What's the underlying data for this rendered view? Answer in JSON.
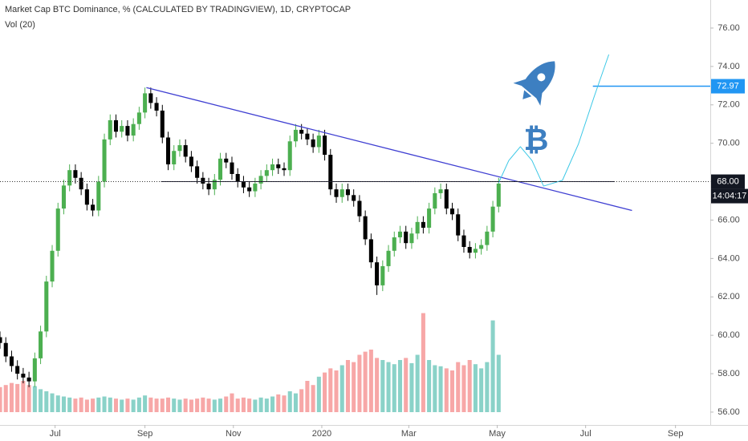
{
  "chart_data": {
    "type": "candlestick",
    "title": "Market Cap BTC Dominance, % (CALCULATED BY TRADINGVIEW), 1D, CRYPTOCAP",
    "subtitle": "Vol (20)",
    "x": [
      0,
      4,
      8,
      12,
      16,
      20,
      24,
      28,
      32,
      36,
      40,
      44,
      48,
      52,
      56,
      60,
      64,
      68,
      72,
      76,
      80,
      84,
      88,
      92,
      96,
      100,
      104,
      108,
      112,
      116,
      120,
      124,
      128,
      132,
      136,
      140,
      144,
      148,
      152,
      156,
      160,
      164,
      168,
      172,
      176,
      180,
      184,
      188,
      192,
      196,
      200,
      204,
      208,
      212,
      216,
      220,
      224,
      228,
      232,
      236,
      240,
      244,
      248,
      252,
      256,
      260,
      264,
      268,
      272,
      276,
      280,
      284,
      288,
      292,
      296,
      300,
      304,
      308,
      312,
      316,
      320,
      324,
      328,
      332,
      336,
      340,
      344
    ],
    "open": [
      59.9,
      59.6,
      58.9,
      58.4,
      58.0,
      57.8,
      57.6,
      58.8,
      60.2,
      62.8,
      64.4,
      66.6,
      67.8,
      68.6,
      68.2,
      67.6,
      66.8,
      66.5,
      68.0,
      70.2,
      71.2,
      70.6,
      70.9,
      70.4,
      71.0,
      71.6,
      72.6,
      72.1,
      71.7,
      70.3,
      68.9,
      69.6,
      69.9,
      69.3,
      68.8,
      68.2,
      67.9,
      67.6,
      68.1,
      69.2,
      69.0,
      68.4,
      68.0,
      67.7,
      67.5,
      67.9,
      68.3,
      68.6,
      68.9,
      68.7,
      68.6,
      70.1,
      70.7,
      70.5,
      70.2,
      69.8,
      70.4,
      69.4,
      67.6,
      67.2,
      67.6,
      67.3,
      67.0,
      66.2,
      65.0,
      63.8,
      62.6,
      63.6,
      64.4,
      65.1,
      65.4,
      64.8,
      65.3,
      65.9,
      65.6,
      66.6,
      67.4,
      67.6,
      66.6,
      66.3,
      65.2,
      64.6,
      64.3,
      64.5,
      64.7,
      65.4,
      66.7
    ],
    "high": [
      60.2,
      59.9,
      59.2,
      58.7,
      58.3,
      58.1,
      59.1,
      60.5,
      63.1,
      64.7,
      66.9,
      68.1,
      68.9,
      68.9,
      68.5,
      67.9,
      67.1,
      68.3,
      70.5,
      71.5,
      71.5,
      71.2,
      71.2,
      71.3,
      71.9,
      72.9,
      72.9,
      72.4,
      72.0,
      70.6,
      69.9,
      70.2,
      70.2,
      69.6,
      69.1,
      68.5,
      68.2,
      68.4,
      69.5,
      69.5,
      69.3,
      68.7,
      68.3,
      68.0,
      68.2,
      68.6,
      68.9,
      69.2,
      69.2,
      69.0,
      70.4,
      71.0,
      71.0,
      70.8,
      70.5,
      70.7,
      70.7,
      69.7,
      67.9,
      67.9,
      67.9,
      67.6,
      67.3,
      66.5,
      65.3,
      64.1,
      63.9,
      64.7,
      65.4,
      65.7,
      65.7,
      65.6,
      66.2,
      66.2,
      66.9,
      67.7,
      67.9,
      67.9,
      66.9,
      66.6,
      65.5,
      64.9,
      64.8,
      65.0,
      65.7,
      67.0,
      68.2
    ],
    "low": [
      59.3,
      58.6,
      58.1,
      57.7,
      57.5,
      57.3,
      57.3,
      58.5,
      59.9,
      62.5,
      64.1,
      66.3,
      67.5,
      67.9,
      67.3,
      66.5,
      66.2,
      66.2,
      67.7,
      69.9,
      70.3,
      70.3,
      70.1,
      70.1,
      70.7,
      71.3,
      71.8,
      71.4,
      70.0,
      68.6,
      68.6,
      69.3,
      69.0,
      68.5,
      67.9,
      67.6,
      67.3,
      67.3,
      67.8,
      68.7,
      68.1,
      67.7,
      67.4,
      67.2,
      67.2,
      67.6,
      68.0,
      68.3,
      68.4,
      68.3,
      68.3,
      69.8,
      70.2,
      69.9,
      69.5,
      69.5,
      69.1,
      67.3,
      66.9,
      66.9,
      67.0,
      66.7,
      65.9,
      64.7,
      63.5,
      62.1,
      62.3,
      63.3,
      64.1,
      64.8,
      64.5,
      64.5,
      65.0,
      65.3,
      65.3,
      66.3,
      67.1,
      66.3,
      66.0,
      64.9,
      64.3,
      64.0,
      64.0,
      64.2,
      64.4,
      65.1,
      66.4
    ],
    "close": [
      59.6,
      58.9,
      58.4,
      58.0,
      57.8,
      57.6,
      58.8,
      60.2,
      62.8,
      64.4,
      66.6,
      67.8,
      68.6,
      68.2,
      67.6,
      66.8,
      66.5,
      68.0,
      70.2,
      71.2,
      70.6,
      70.9,
      70.4,
      71.0,
      71.6,
      72.6,
      72.1,
      71.7,
      70.3,
      68.9,
      69.6,
      69.9,
      69.3,
      68.8,
      68.2,
      67.9,
      67.6,
      68.1,
      69.2,
      69.0,
      68.4,
      68.0,
      67.7,
      67.5,
      67.9,
      68.3,
      68.6,
      68.9,
      68.7,
      68.6,
      70.1,
      70.7,
      70.5,
      70.2,
      69.8,
      70.4,
      69.4,
      67.6,
      67.2,
      67.6,
      67.3,
      67.0,
      66.2,
      65.0,
      63.8,
      62.6,
      63.6,
      64.4,
      65.1,
      65.4,
      64.8,
      65.3,
      65.9,
      65.6,
      66.6,
      67.4,
      67.6,
      66.6,
      66.3,
      65.2,
      64.6,
      64.3,
      64.5,
      64.7,
      65.4,
      66.7,
      67.9
    ],
    "volume": [
      24,
      26,
      28,
      27,
      30,
      26,
      25,
      22,
      20,
      18,
      16,
      15,
      14,
      13,
      14,
      12,
      13,
      14,
      15,
      14,
      13,
      12,
      13,
      12,
      14,
      16,
      14,
      13,
      13,
      14,
      13,
      12,
      13,
      12,
      13,
      14,
      13,
      12,
      13,
      15,
      18,
      13,
      14,
      13,
      12,
      14,
      13,
      15,
      17,
      16,
      20,
      18,
      22,
      30,
      26,
      34,
      38,
      42,
      40,
      45,
      50,
      48,
      55,
      58,
      60,
      52,
      50,
      48,
      46,
      50,
      52,
      47,
      55,
      95,
      50,
      45,
      44,
      42,
      40,
      48,
      45,
      50,
      46,
      42,
      48,
      88,
      55
    ],
    "vlim": [
      0,
      100
    ],
    "xlim": [
      0,
      490
    ],
    "ylim": [
      55.33,
      77.46
    ],
    "xticks": [
      {
        "value": 38,
        "label": "Jul"
      },
      {
        "value": 100,
        "label": "Sep"
      },
      {
        "value": 161,
        "label": "Nov"
      },
      {
        "value": 222,
        "label": "2020"
      },
      {
        "value": 282,
        "label": "Mar"
      },
      {
        "value": 343,
        "label": "May"
      },
      {
        "value": 404,
        "label": "Jul"
      },
      {
        "value": 466,
        "label": "Sep"
      }
    ],
    "yticks": [
      {
        "value": 56,
        "label": "56.00"
      },
      {
        "value": 58,
        "label": "58.00"
      },
      {
        "value": 60,
        "label": "60.00"
      },
      {
        "value": 62,
        "label": "62.00"
      },
      {
        "value": 64,
        "label": "64.00"
      },
      {
        "value": 66,
        "label": "66.00"
      },
      {
        "value": 68,
        "label": "68.00"
      },
      {
        "value": 70,
        "label": "70.00"
      },
      {
        "value": 72,
        "label": "72.00"
      },
      {
        "value": 74,
        "label": "74.00"
      },
      {
        "value": 76,
        "label": "76.00"
      }
    ],
    "grid": false,
    "up_color": "#4caf50",
    "down_color": "#000000",
    "volume_up_color": "#8ad2c8",
    "volume_down_color": "#f7a7a7",
    "annotations": {
      "trendline": {
        "x": [
          101,
          436
        ],
        "y": [
          72.9,
          66.5
        ],
        "color": "#3f3fd2"
      },
      "level_line": {
        "x": [
          111,
          424
        ],
        "y": [
          68.0,
          68.0
        ],
        "color": "#1a1a2e"
      },
      "target_line": {
        "x": [
          409,
          490
        ],
        "y": [
          72.97,
          72.97
        ],
        "color": "#2196f3"
      },
      "projection": {
        "x": [
          344,
          351,
          359,
          367,
          375,
          388,
          399,
          410,
          420
        ],
        "y": [
          67.94,
          69.1,
          69.82,
          69.1,
          67.77,
          68.07,
          69.95,
          72.45,
          74.62
        ],
        "color": "#3cc8e6"
      },
      "current_price": {
        "value": 68.0,
        "label": "68.00"
      },
      "countdown": "14:04:17",
      "target_price": {
        "value": 72.97,
        "label": "72.97"
      },
      "bitcoin_symbol": "₿"
    }
  }
}
